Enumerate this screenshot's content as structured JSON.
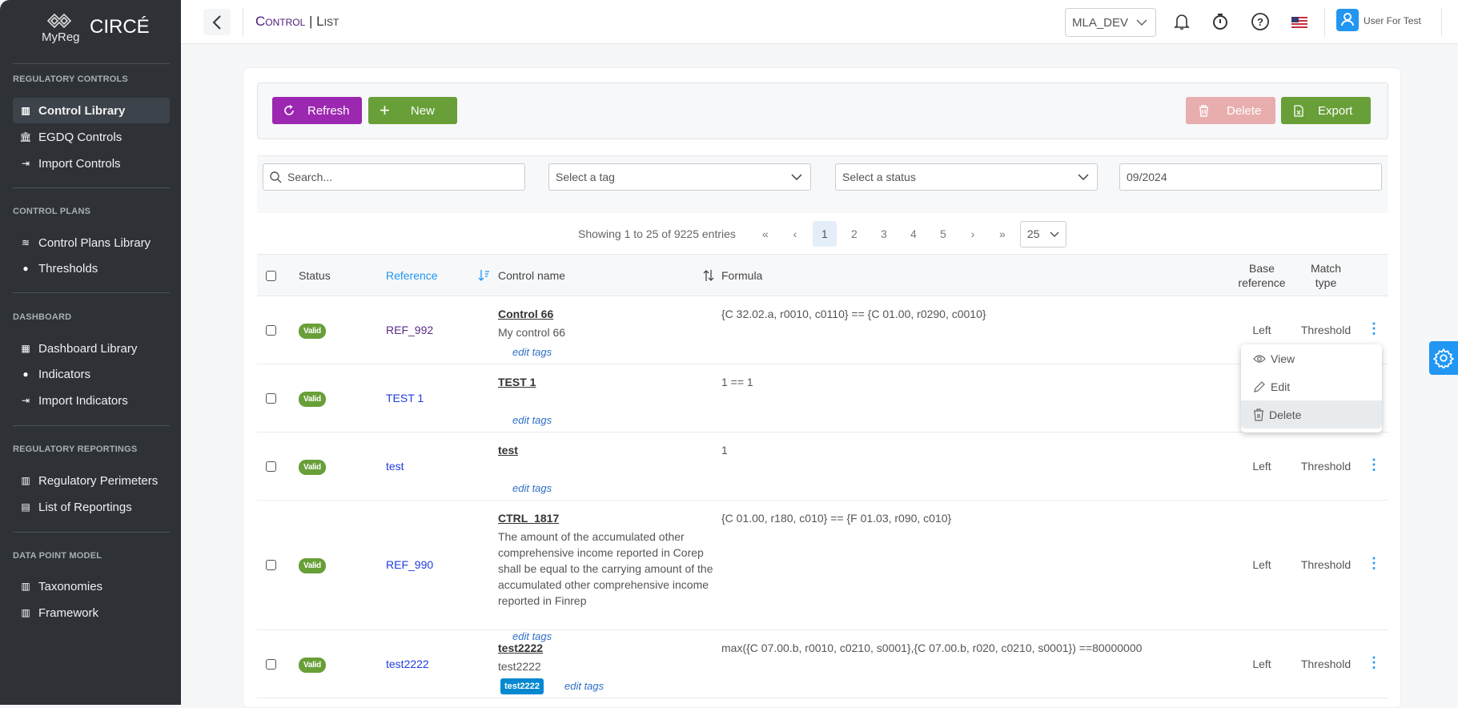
{
  "sidebar": {
    "logo_sub": "MyReg",
    "app_name": "CIRCÉ",
    "sections": [
      {
        "title": "REGULATORY CONTROLS",
        "items": [
          {
            "label": "Control Library",
            "icon": "books-icon",
            "active": true
          },
          {
            "label": "EGDQ Controls",
            "icon": "bank-icon"
          },
          {
            "label": "Import Controls",
            "icon": "file-import-icon"
          }
        ]
      },
      {
        "title": "CONTROL PLANS",
        "items": [
          {
            "label": "Control Plans Library",
            "icon": "layers-icon"
          },
          {
            "label": "Thresholds",
            "icon": "palette-icon"
          }
        ]
      },
      {
        "title": "DASHBOARD",
        "items": [
          {
            "label": "Dashboard Library",
            "icon": "grid-icon"
          },
          {
            "label": "Indicators",
            "icon": "info-circle-icon"
          },
          {
            "label": "Import Indicators",
            "icon": "file-import-icon"
          }
        ]
      },
      {
        "title": "REGULATORY REPORTINGS",
        "items": [
          {
            "label": "Regulatory Perimeters",
            "icon": "columns-icon"
          },
          {
            "label": "List of Reportings",
            "icon": "file-icon"
          }
        ]
      },
      {
        "title": "DATA POINT MODEL",
        "items": [
          {
            "label": "Taxonomies",
            "icon": "columns-icon"
          },
          {
            "label": "Framework",
            "icon": "columns-icon"
          }
        ]
      }
    ]
  },
  "header": {
    "breadcrumb_1": "Control",
    "breadcrumb_sep": " | ",
    "breadcrumb_2": "List",
    "environment": "MLA_DEV",
    "user": "User For Test"
  },
  "toolbar": {
    "refresh": "Refresh",
    "new": "New",
    "delete": "Delete",
    "export": "Export"
  },
  "filters": {
    "search_placeholder": "Search...",
    "tag_placeholder": "Select a tag",
    "status_placeholder": "Select a status",
    "date": "09/2024"
  },
  "pagination": {
    "summary": "Showing 1 to 25 of 9225 entries",
    "first": "«",
    "prev": "‹",
    "pages": [
      "1",
      "2",
      "3",
      "4",
      "5"
    ],
    "current": "1",
    "next": "›",
    "last": "»",
    "page_size": "25"
  },
  "table": {
    "columns": {
      "status": "Status",
      "reference": "Reference",
      "control_name": "Control name",
      "formula": "Formula",
      "base_reference_1": "Base",
      "base_reference_2": "reference",
      "match_type_1": "Match",
      "match_type_2": "type"
    },
    "edit_tags": "edit tags",
    "rows": [
      {
        "status": "Valid",
        "reference": "REF_992",
        "name": "Control 66",
        "description": "My control 66",
        "formula": "{C 32.02.a, r0010, c0110} == {C 01.00, r0290, c0010}",
        "base": "Left",
        "match": "Threshold",
        "tags": []
      },
      {
        "status": "Valid",
        "reference": "TEST 1",
        "name": "TEST 1",
        "description": "",
        "formula": "1 == 1",
        "base": "",
        "match": "",
        "tags": []
      },
      {
        "status": "Valid",
        "reference": "test",
        "name": "test",
        "description": "",
        "formula": "1",
        "base": "Left",
        "match": "Threshold",
        "tags": []
      },
      {
        "status": "Valid",
        "reference": "REF_990",
        "name": "CTRL_1817",
        "description": "The amount of the accumulated other comprehensive income reported in Corep shall be equal to the carrying amount of the accumulated other comprehensive income reported in Finrep",
        "formula": "{C 01.00, r180, c010} == {F 01.03, r090, c010}",
        "base": "Left",
        "match": "Threshold",
        "tags": []
      },
      {
        "status": "Valid",
        "reference": "test2222",
        "name": "test2222",
        "description": "test2222",
        "formula": "max({C 07.00.b, r0010, c0210, s0001},{C 07.00.b, r020, c0210, s0001}) ==80000000",
        "base": "Left",
        "match": "Threshold",
        "tags": [
          "test2222"
        ]
      }
    ]
  },
  "row_menu": {
    "view": "View",
    "edit": "Edit",
    "delete": "Delete"
  },
  "colors": {
    "sidebar": "#2e3237",
    "refresh": "#9c27b0",
    "new": "#689f38",
    "delete": "#e8aeae",
    "export": "#689f38",
    "accent": "#2196f3",
    "valid": "#689f38"
  }
}
